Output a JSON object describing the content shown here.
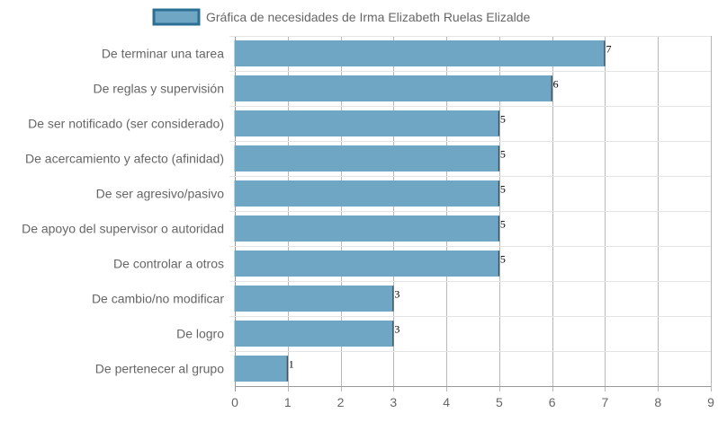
{
  "chart_data": {
    "type": "bar",
    "orientation": "horizontal",
    "categories": [
      "De terminar una tarea",
      "De reglas y supervisión",
      "De ser notificado (ser considerado)",
      "De acercamiento y afecto (afinidad)",
      "De ser agresivo/pasivo",
      "De apoyo del supervisor o autoridad",
      "De controlar a otros",
      "De cambio/no modificar",
      "De logro",
      "De pertenecer al grupo"
    ],
    "series": [
      {
        "name": "Gráfica de necesidades de Irma Elizabeth Ruelas Elizalde",
        "values": [
          7,
          6,
          5,
          5,
          5,
          5,
          5,
          3,
          3,
          1
        ],
        "color": "#6ea6c4",
        "border_color": "#2b6f95"
      }
    ],
    "data_labels": [
      "7",
      "6",
      "5",
      "5",
      "5",
      "5",
      "5",
      "3",
      "3",
      "1"
    ],
    "xlim": [
      0,
      9
    ],
    "x_ticks": [
      "0",
      "1",
      "2",
      "3",
      "4",
      "5",
      "6",
      "7",
      "8",
      "9"
    ],
    "grid": true,
    "legend_position": "top",
    "xlabel": "",
    "ylabel": ""
  }
}
